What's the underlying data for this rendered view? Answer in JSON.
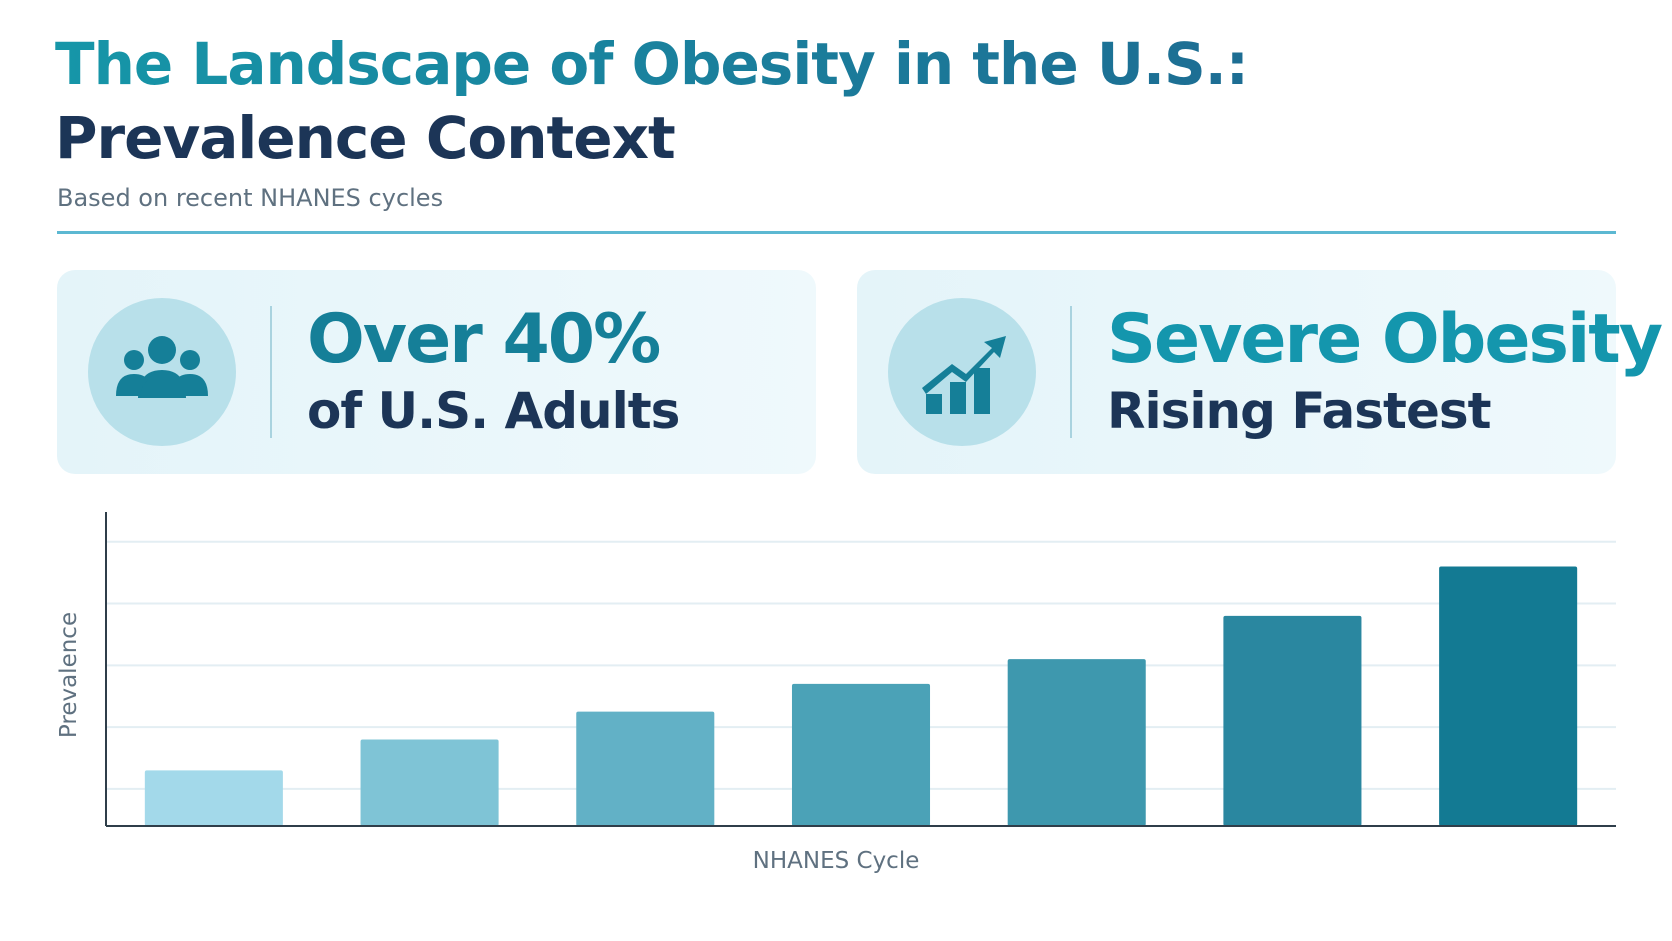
{
  "header": {
    "title": [
      "The Landscape of Obesity in the U.S.:",
      "Prevalence Context"
    ],
    "subtitle": "Based on recent NHANES cycles"
  },
  "cards": [
    {
      "headline": "Over 40%",
      "subline": "of U.S. Adults"
    },
    {
      "headline": "Severe Obesity",
      "subline": "Rising Fastest"
    }
  ],
  "chart_data": {
    "type": "bar",
    "x_label": "NHANES Cycle",
    "y_label": "Prevalence",
    "categories": [
      null,
      null,
      null,
      null,
      null,
      null,
      null
    ],
    "values": [
      0.9,
      1.4,
      1.85,
      2.3,
      2.7,
      3.4,
      4.2
    ],
    "colors": [
      "#a3d9ea",
      "#7fc4d6",
      "#62b1c6",
      "#4ba2b7",
      "#3e98ae",
      "#2a87a0",
      "#137a93"
    ],
    "ylim": [
      0,
      5
    ],
    "yticks": [
      0.6,
      1.6,
      2.6,
      3.6,
      4.6
    ],
    "grid": true
  }
}
